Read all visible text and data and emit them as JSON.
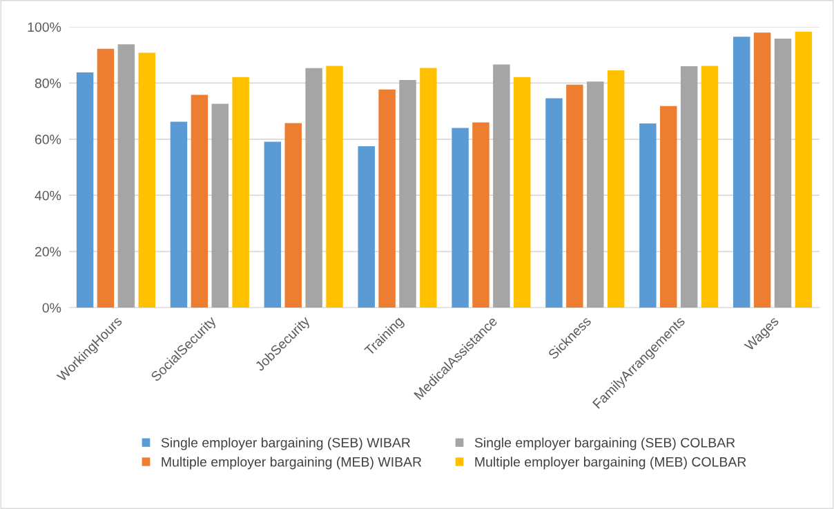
{
  "chart_data": {
    "type": "bar",
    "categories": [
      "WorkingHours",
      "SocialSecurity",
      "JobSecurity",
      "Training",
      "MedicalAssistance",
      "Sickness",
      "FamilyArrangements",
      "Wages"
    ],
    "series": [
      {
        "name": "Single employer bargaining (SEB) WIBAR",
        "color": "#5b9bd5",
        "values": [
          83.8,
          66.2,
          59.1,
          57.5,
          64.0,
          74.6,
          65.6,
          96.5
        ]
      },
      {
        "name": "Multiple employer bargaining (MEB) WIBAR",
        "color": "#ed7d31",
        "values": [
          92.2,
          75.8,
          65.7,
          77.7,
          66.0,
          79.4,
          71.8,
          98.0
        ]
      },
      {
        "name": "Single employer bargaining (SEB) COLBAR",
        "color": "#a5a5a5",
        "values": [
          93.8,
          72.6,
          85.3,
          81.1,
          86.6,
          80.5,
          86.0,
          95.8
        ]
      },
      {
        "name": "Multiple employer bargaining (MEB) COLBAR",
        "color": "#ffc000",
        "values": [
          90.8,
          82.1,
          86.1,
          85.4,
          82.1,
          84.5,
          86.1,
          98.3
        ]
      }
    ],
    "ylim": [
      0,
      100
    ],
    "yticks": [
      {
        "value": 0,
        "label": "0%"
      },
      {
        "value": 20,
        "label": "20%"
      },
      {
        "value": 40,
        "label": "40%"
      },
      {
        "value": 60,
        "label": "60%"
      },
      {
        "value": 80,
        "label": "80%"
      },
      {
        "value": 100,
        "label": "100%"
      }
    ],
    "grid": "y",
    "legend": "bottom"
  }
}
